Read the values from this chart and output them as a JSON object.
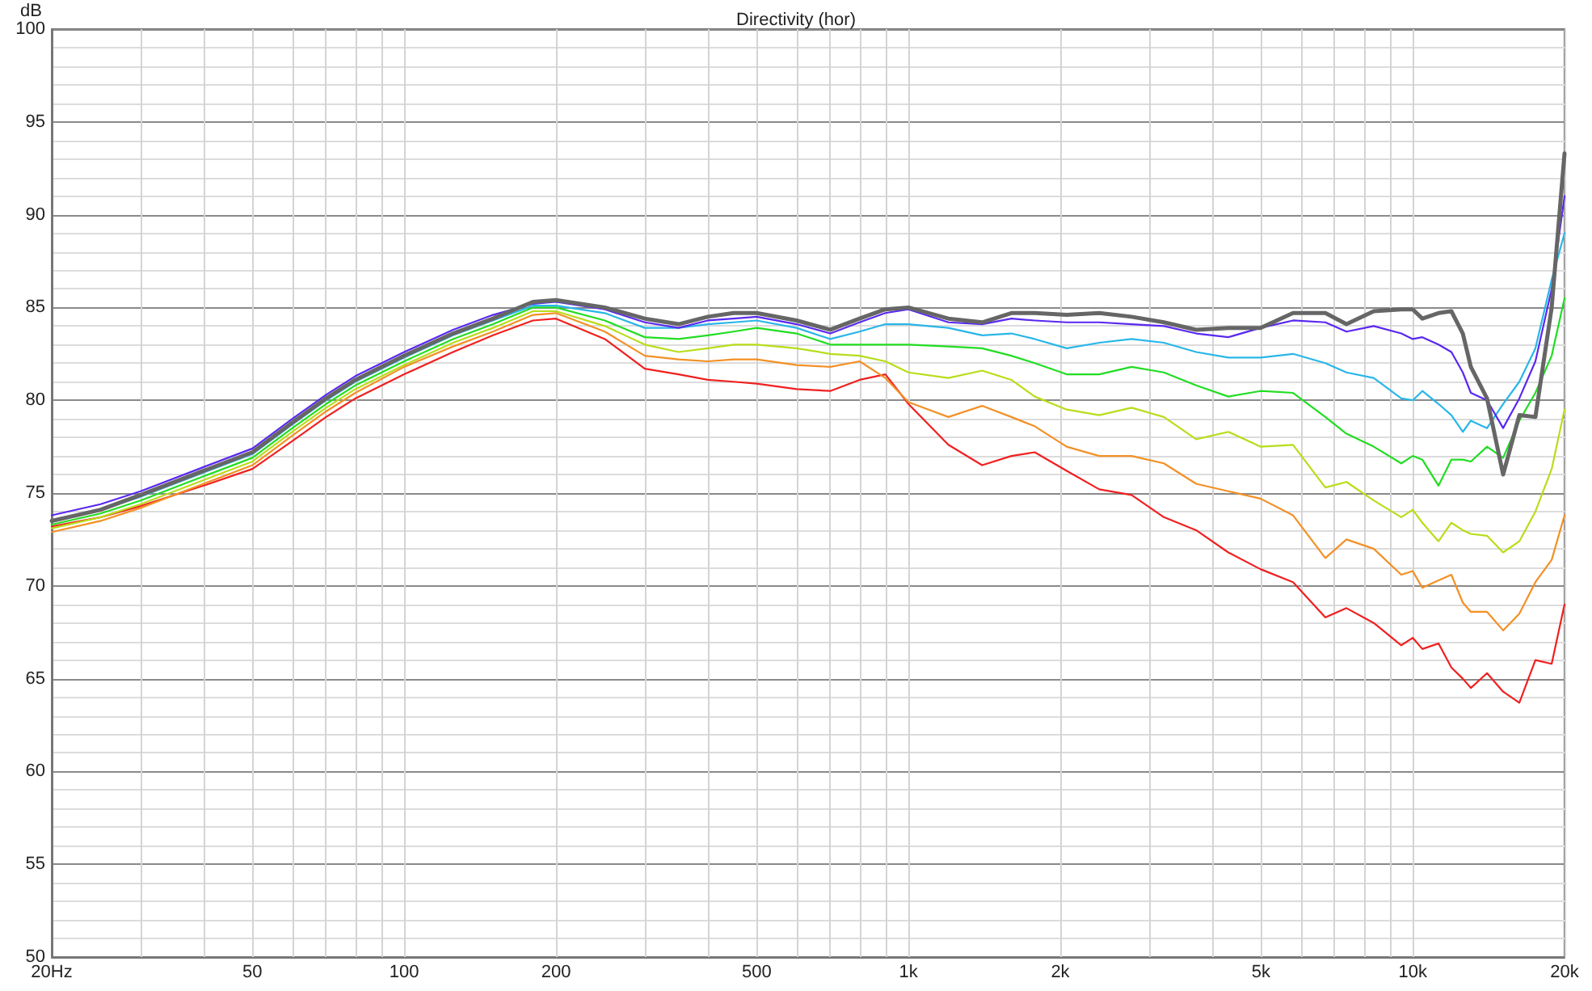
{
  "chart_data": {
    "type": "line",
    "title": "Directivity (hor)",
    "ylabel": "dB",
    "x": [
      20,
      25,
      30,
      40,
      50,
      60,
      70,
      80,
      100,
      125,
      150,
      180,
      200,
      250,
      300,
      350,
      400,
      450,
      500,
      600,
      700,
      800,
      900,
      1000,
      1200,
      1400,
      1600,
      1780,
      2060,
      2390,
      2770,
      3210,
      3720,
      4310,
      4990,
      5790,
      6710,
      7390,
      8370,
      9490,
      10000,
      10450,
      11250,
      11930,
      12570,
      13040,
      14040,
      15110,
      16270,
      17510,
      18860,
      20000
    ],
    "series": [
      {
        "color": "#f02020",
        "values": [
          73.2,
          73.7,
          74.3,
          75.4,
          76.3,
          77.8,
          79.1,
          80.1,
          81.4,
          82.6,
          83.5,
          84.3,
          84.4,
          83.3,
          81.7,
          81.4,
          81.1,
          81.0,
          80.9,
          80.6,
          80.5,
          81.1,
          81.4,
          79.8,
          77.6,
          76.5,
          77.0,
          77.2,
          76.2,
          75.2,
          74.9,
          73.7,
          73.0,
          71.8,
          70.9,
          70.2,
          68.3,
          68.8,
          68.0,
          66.8,
          67.2,
          66.6,
          66.9,
          65.6,
          65.0,
          64.5,
          65.3,
          64.3,
          63.7,
          66.0,
          65.8,
          69.0
        ]
      },
      {
        "color": "#f39025",
        "values": [
          72.9,
          73.5,
          74.2,
          75.5,
          76.5,
          78.1,
          79.4,
          80.4,
          81.8,
          82.9,
          83.7,
          84.6,
          84.7,
          83.7,
          82.4,
          82.2,
          82.1,
          82.2,
          82.2,
          81.9,
          81.8,
          82.1,
          81.2,
          79.9,
          79.1,
          79.7,
          79.1,
          78.6,
          77.5,
          77.0,
          77.0,
          76.6,
          75.5,
          75.1,
          74.7,
          73.8,
          71.5,
          72.5,
          72.0,
          70.6,
          70.8,
          69.9,
          70.3,
          70.6,
          69.1,
          68.6,
          68.6,
          67.6,
          68.5,
          70.2,
          71.4,
          73.8
        ]
      },
      {
        "color": "#b8dd1a",
        "values": [
          73.1,
          73.7,
          74.4,
          75.7,
          76.7,
          78.3,
          79.6,
          80.6,
          81.9,
          83.1,
          83.9,
          84.8,
          84.8,
          84.0,
          83.0,
          82.6,
          82.8,
          83.0,
          83.0,
          82.8,
          82.5,
          82.4,
          82.1,
          81.5,
          81.2,
          81.6,
          81.1,
          80.2,
          79.5,
          79.2,
          79.6,
          79.1,
          77.9,
          78.3,
          77.5,
          77.6,
          75.3,
          75.6,
          74.6,
          73.7,
          74.1,
          73.4,
          72.4,
          73.4,
          73.0,
          72.8,
          72.7,
          71.8,
          72.4,
          74.0,
          76.3,
          79.5
        ]
      },
      {
        "color": "#22dd22",
        "values": [
          73.3,
          73.9,
          74.6,
          75.9,
          76.9,
          78.5,
          79.8,
          80.8,
          82.1,
          83.3,
          84.1,
          85.0,
          85.0,
          84.3,
          83.4,
          83.3,
          83.5,
          83.7,
          83.9,
          83.6,
          83.0,
          83.0,
          83.0,
          83.0,
          82.9,
          82.8,
          82.4,
          82.0,
          81.4,
          81.4,
          81.8,
          81.5,
          80.8,
          80.2,
          80.5,
          80.4,
          79.1,
          78.2,
          77.5,
          76.6,
          77.0,
          76.8,
          75.4,
          76.8,
          76.8,
          76.7,
          77.5,
          76.9,
          78.9,
          80.4,
          82.4,
          85.5
        ]
      },
      {
        "color": "#29b6e8",
        "values": [
          73.5,
          74.1,
          74.8,
          76.1,
          77.1,
          78.7,
          80.0,
          81.0,
          82.3,
          83.5,
          84.3,
          85.1,
          85.1,
          84.7,
          83.9,
          83.9,
          84.1,
          84.2,
          84.3,
          83.9,
          83.3,
          83.7,
          84.1,
          84.1,
          83.9,
          83.5,
          83.6,
          83.3,
          82.8,
          83.1,
          83.3,
          83.1,
          82.6,
          82.3,
          82.3,
          82.5,
          82.0,
          81.5,
          81.2,
          80.1,
          80.0,
          80.5,
          79.8,
          79.2,
          78.3,
          78.9,
          78.5,
          79.8,
          81.0,
          82.8,
          86.5,
          89.0
        ]
      },
      {
        "color": "#5a28f0",
        "values": [
          73.8,
          74.4,
          75.1,
          76.4,
          77.4,
          79.0,
          80.3,
          81.3,
          82.6,
          83.8,
          84.6,
          85.2,
          85.3,
          84.9,
          84.2,
          83.9,
          84.3,
          84.4,
          84.5,
          84.1,
          83.6,
          84.2,
          84.7,
          84.9,
          84.2,
          84.1,
          84.4,
          84.3,
          84.2,
          84.2,
          84.1,
          84.0,
          83.6,
          83.4,
          83.9,
          84.3,
          84.2,
          83.7,
          84.0,
          83.6,
          83.3,
          83.4,
          83.0,
          82.6,
          81.5,
          80.4,
          80.0,
          78.5,
          80.1,
          82.1,
          86.0,
          91.0
        ]
      },
      {
        "color": "#666666",
        "values": [
          73.5,
          74.1,
          74.9,
          76.2,
          77.2,
          78.8,
          80.1,
          81.1,
          82.4,
          83.6,
          84.4,
          85.3,
          85.4,
          85.0,
          84.4,
          84.1,
          84.5,
          84.7,
          84.7,
          84.3,
          83.8,
          84.4,
          84.9,
          85.0,
          84.4,
          84.2,
          84.7,
          84.7,
          84.6,
          84.7,
          84.5,
          84.2,
          83.8,
          83.9,
          83.9,
          84.7,
          84.7,
          84.1,
          84.8,
          84.9,
          84.9,
          84.4,
          84.7,
          84.8,
          83.6,
          81.8,
          80.1,
          76.0,
          79.2,
          79.1,
          85.0,
          93.3
        ]
      }
    ],
    "log": "x",
    "xlim": [
      20,
      20000
    ],
    "xticks": [
      {
        "value": 20,
        "label": "20Hz"
      },
      {
        "value": 30,
        "label": null
      },
      {
        "value": 40,
        "label": null
      },
      50,
      {
        "value": 60,
        "label": null
      },
      {
        "value": 70,
        "label": null
      },
      {
        "value": 80,
        "label": null
      },
      {
        "value": 90,
        "label": null
      },
      100,
      200,
      {
        "value": 300,
        "label": null
      },
      {
        "value": 400,
        "label": null
      },
      500,
      {
        "value": 600,
        "label": null
      },
      {
        "value": 700,
        "label": null
      },
      {
        "value": 800,
        "label": null
      },
      {
        "value": 900,
        "label": null
      },
      {
        "value": 1000,
        "label": "1k"
      },
      {
        "value": 2000,
        "label": "2k"
      },
      {
        "value": 3000,
        "label": null
      },
      {
        "value": 4000,
        "label": null
      },
      {
        "value": 5000,
        "label": "5k"
      },
      {
        "value": 6000,
        "label": null
      },
      {
        "value": 7000,
        "label": null
      },
      {
        "value": 8000,
        "label": null
      },
      {
        "value": 9000,
        "label": null
      },
      {
        "value": 10000,
        "label": "10k"
      },
      {
        "value": 20000,
        "label": "20k"
      }
    ],
    "ylim": [
      50,
      100
    ],
    "yticks": [
      50,
      55,
      60,
      65,
      70,
      75,
      80,
      85,
      90,
      95,
      100
    ],
    "grid": true,
    "line_style": "solid"
  }
}
